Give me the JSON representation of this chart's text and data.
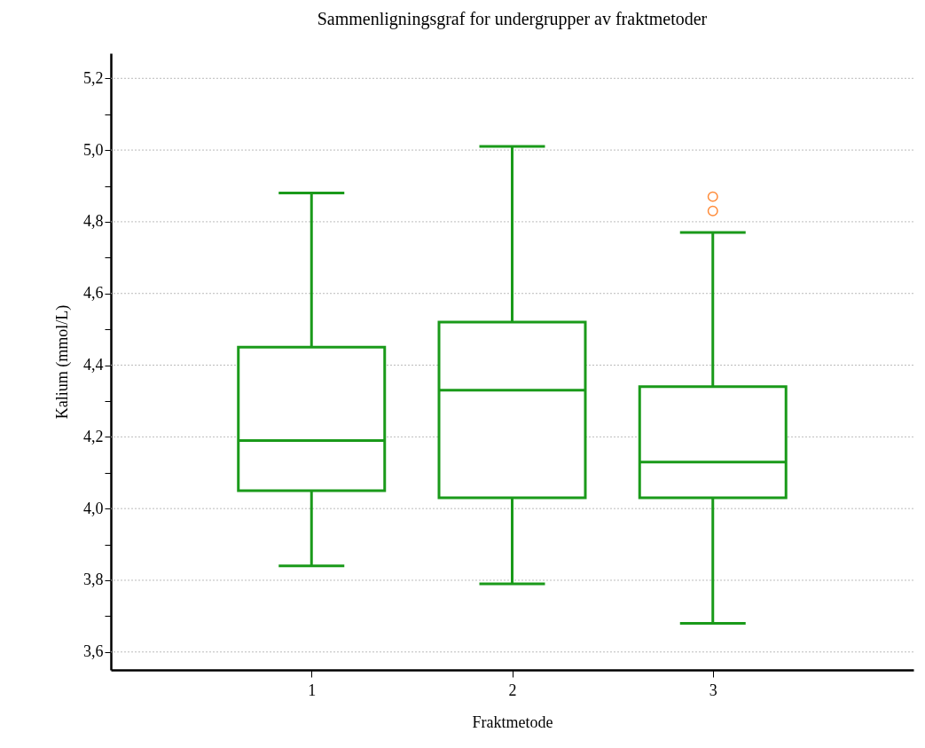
{
  "chart_data": {
    "type": "box",
    "title": "Sammenligningsgraf for undergrupper av fraktmetoder",
    "xlabel": "Fraktmetode",
    "ylabel": "Kalium (mmol/L)",
    "categories": [
      "1",
      "2",
      "3"
    ],
    "series": [
      {
        "color": "#1a9a1a",
        "boxes": [
          {
            "low": 3.84,
            "q1": 4.05,
            "median": 4.19,
            "q3": 4.45,
            "high": 4.88
          },
          {
            "low": 3.79,
            "q1": 4.03,
            "median": 4.33,
            "q3": 4.52,
            "high": 5.01
          },
          {
            "low": 3.68,
            "q1": 4.03,
            "median": 4.13,
            "q3": 4.34,
            "high": 4.77
          }
        ]
      },
      {
        "type": "scatter",
        "color": "#ff8c3a",
        "marker": "circle",
        "x": [
          "3",
          "3"
        ],
        "values": [
          4.87,
          4.83
        ]
      }
    ],
    "ylim": [
      3.55,
      5.27
    ],
    "yticks": [
      {
        "value": 3.6,
        "label": "3,6"
      },
      {
        "value": 3.7,
        "label": null
      },
      {
        "value": 3.8,
        "label": "3,8"
      },
      {
        "value": 3.9,
        "label": null
      },
      {
        "value": 4.0,
        "label": "4,0"
      },
      {
        "value": 4.1,
        "label": null
      },
      {
        "value": 4.2,
        "label": "4,2"
      },
      {
        "value": 4.3,
        "label": null
      },
      {
        "value": 4.4,
        "label": "4,4"
      },
      {
        "value": 4.5,
        "label": null
      },
      {
        "value": 4.6,
        "label": "4,6"
      },
      {
        "value": 4.7,
        "label": null
      },
      {
        "value": 4.8,
        "label": "4,8"
      },
      {
        "value": 4.9,
        "label": null
      },
      {
        "value": 5.0,
        "label": "5,0"
      },
      {
        "value": 5.1,
        "label": null
      },
      {
        "value": 5.2,
        "label": "5,2"
      }
    ],
    "grid": "y"
  }
}
